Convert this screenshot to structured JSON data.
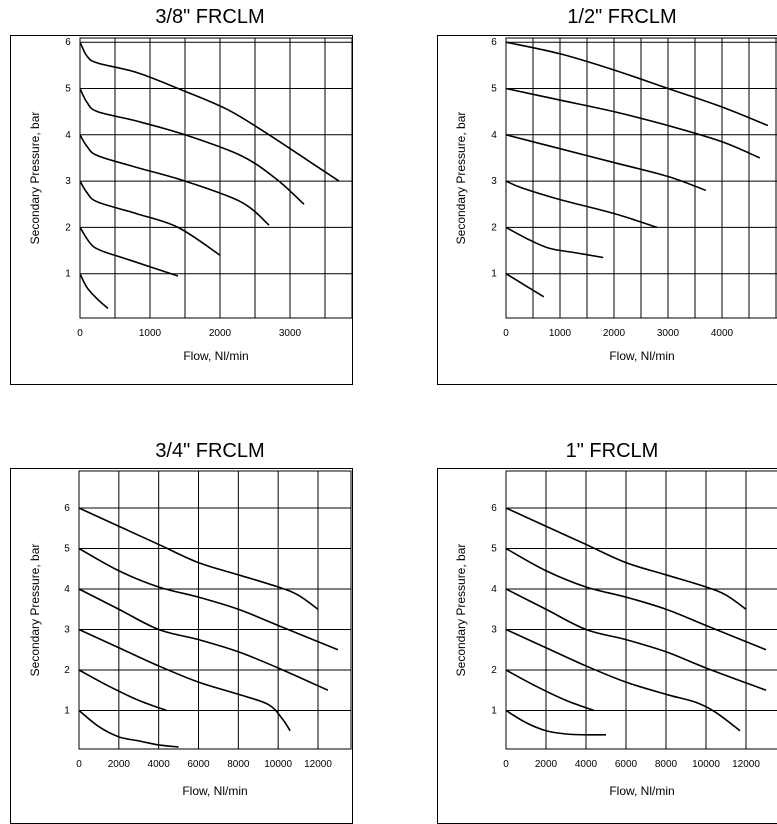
{
  "chart_data": [
    {
      "type": "line",
      "title": "3/8\" FRCLM",
      "xlabel": "Flow, Nl/min",
      "ylabel": "Secondary Pressure, bar",
      "xlim": [
        0,
        3000
      ],
      "ylim": [
        0,
        6
      ],
      "xticks": [
        0,
        1000,
        2000,
        3000
      ],
      "yticks": [
        1,
        2,
        3,
        4,
        5,
        6
      ],
      "grid": true,
      "series": [
        {
          "x": [
            0,
            100,
            250,
            400
          ],
          "y": [
            1,
            0.7,
            0.45,
            0.25
          ]
        },
        {
          "x": [
            0,
            150,
            300,
            700,
            1400
          ],
          "y": [
            2,
            1.65,
            1.5,
            1.3,
            0.95
          ]
        },
        {
          "x": [
            0,
            100,
            250,
            800,
            1400,
            2000
          ],
          "y": [
            3,
            2.75,
            2.55,
            2.3,
            2.0,
            1.4
          ]
        },
        {
          "x": [
            0,
            100,
            250,
            800,
            1500,
            2300,
            2700
          ],
          "y": [
            4,
            3.75,
            3.55,
            3.3,
            3.0,
            2.55,
            2.05
          ]
        },
        {
          "x": [
            0,
            100,
            250,
            800,
            1500,
            2300,
            2800,
            3200
          ],
          "y": [
            5,
            4.7,
            4.5,
            4.3,
            4.0,
            3.55,
            3.05,
            2.5
          ]
        },
        {
          "x": [
            0,
            100,
            250,
            800,
            1400,
            2100,
            2700,
            3300,
            3700
          ],
          "y": [
            6,
            5.7,
            5.55,
            5.35,
            5.0,
            4.55,
            4.0,
            3.4,
            3.0
          ]
        }
      ]
    },
    {
      "type": "line",
      "title": "1/2\" FRCLM",
      "xlabel": "Flow, Nl/min",
      "ylabel": "Secondary Pressure, bar",
      "xlim": [
        0,
        4000
      ],
      "ylim": [
        0,
        6
      ],
      "xticks": [
        0,
        1000,
        2000,
        3000,
        4000
      ],
      "yticks": [
        1,
        2,
        3,
        4,
        5,
        6
      ],
      "grid": true,
      "series": [
        {
          "x": [
            0,
            350,
            700
          ],
          "y": [
            1,
            0.75,
            0.5
          ]
        },
        {
          "x": [
            0,
            400,
            800,
            1300,
            1800
          ],
          "y": [
            2,
            1.75,
            1.55,
            1.45,
            1.35
          ]
        },
        {
          "x": [
            0,
            300,
            1000,
            2000,
            2800
          ],
          "y": [
            3,
            2.85,
            2.6,
            2.3,
            2.0
          ]
        },
        {
          "x": [
            0,
            1000,
            2000,
            3000,
            3700
          ],
          "y": [
            4,
            3.7,
            3.4,
            3.1,
            2.8
          ]
        },
        {
          "x": [
            0,
            1000,
            2000,
            3000,
            4000,
            4700
          ],
          "y": [
            5,
            4.75,
            4.5,
            4.2,
            3.85,
            3.5
          ]
        },
        {
          "x": [
            0,
            1000,
            2000,
            3000,
            4000,
            4850
          ],
          "y": [
            6,
            5.75,
            5.4,
            5.0,
            4.6,
            4.2
          ]
        }
      ]
    },
    {
      "type": "line",
      "title": "3/4\" FRCLM",
      "xlabel": "Flow, Nl/min",
      "ylabel": "Secondary Pressure, bar",
      "xlim": [
        0,
        12000
      ],
      "ylim": [
        0,
        6
      ],
      "xticks": [
        0,
        2000,
        4000,
        6000,
        8000,
        10000,
        12000
      ],
      "yticks": [
        1,
        2,
        3,
        4,
        5,
        6
      ],
      "grid": true,
      "series": [
        {
          "x": [
            0,
            1000,
            2000,
            3000,
            4000,
            5000
          ],
          "y": [
            1,
            0.6,
            0.35,
            0.25,
            0.15,
            0.1
          ]
        },
        {
          "x": [
            0,
            1500,
            3000,
            4400
          ],
          "y": [
            2,
            1.6,
            1.25,
            1.0
          ]
        },
        {
          "x": [
            0,
            2000,
            4000,
            6000,
            8000,
            9500,
            10200,
            10600
          ],
          "y": [
            3,
            2.55,
            2.1,
            1.7,
            1.4,
            1.15,
            0.8,
            0.5
          ]
        },
        {
          "x": [
            0,
            2000,
            4000,
            6000,
            8000,
            10000,
            12500
          ],
          "y": [
            4,
            3.5,
            3.0,
            2.75,
            2.45,
            2.05,
            1.5
          ]
        },
        {
          "x": [
            0,
            2000,
            4000,
            6000,
            8000,
            10000,
            13000
          ],
          "y": [
            5,
            4.45,
            4.05,
            3.8,
            3.5,
            3.1,
            2.5
          ]
        },
        {
          "x": [
            0,
            2000,
            4000,
            6000,
            8000,
            10000,
            11000,
            12000
          ],
          "y": [
            6,
            5.55,
            5.1,
            4.65,
            4.35,
            4.05,
            3.85,
            3.5
          ]
        }
      ]
    },
    {
      "type": "line",
      "title": "1\" FRCLM",
      "xlabel": "Flow, Nl/min",
      "ylabel": "Secondary Pressure, bar",
      "xlim": [
        0,
        12000
      ],
      "ylim": [
        0,
        6
      ],
      "xticks": [
        0,
        2000,
        4000,
        6000,
        8000,
        10000,
        12000
      ],
      "yticks": [
        1,
        2,
        3,
        4,
        5,
        6
      ],
      "grid": true,
      "series": [
        {
          "x": [
            0,
            1000,
            2000,
            3000,
            4000,
            5000
          ],
          "y": [
            1,
            0.7,
            0.5,
            0.42,
            0.4,
            0.4
          ]
        },
        {
          "x": [
            0,
            1500,
            3000,
            4400
          ],
          "y": [
            2,
            1.6,
            1.25,
            1.0
          ]
        },
        {
          "x": [
            0,
            2000,
            4000,
            6000,
            8000,
            9500,
            10500,
            11700
          ],
          "y": [
            3,
            2.55,
            2.1,
            1.7,
            1.4,
            1.2,
            0.95,
            0.5
          ]
        },
        {
          "x": [
            0,
            2000,
            4000,
            6000,
            8000,
            10000,
            13000
          ],
          "y": [
            4,
            3.5,
            3.0,
            2.75,
            2.45,
            2.05,
            1.5
          ]
        },
        {
          "x": [
            0,
            2000,
            4000,
            6000,
            8000,
            10000,
            13000
          ],
          "y": [
            5,
            4.45,
            4.05,
            3.8,
            3.5,
            3.1,
            2.5
          ]
        },
        {
          "x": [
            0,
            2000,
            4000,
            6000,
            8000,
            10000,
            11000,
            12000
          ],
          "y": [
            6,
            5.55,
            5.1,
            4.65,
            4.35,
            4.05,
            3.85,
            3.5
          ]
        }
      ]
    }
  ]
}
